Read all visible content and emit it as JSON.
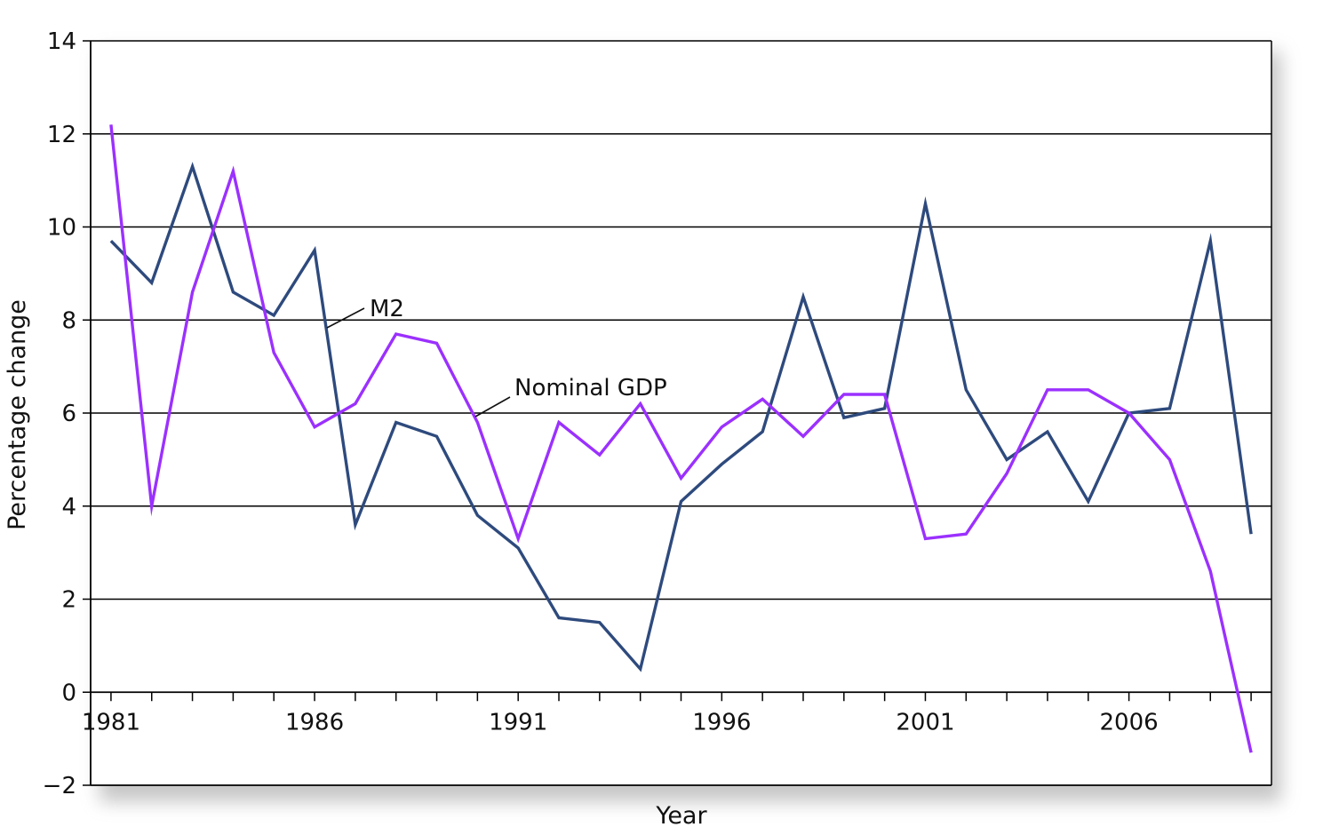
{
  "chart_data": {
    "type": "line",
    "title": "",
    "xlabel": "Year",
    "ylabel": "Percentage change",
    "x": [
      1981,
      1982,
      1983,
      1984,
      1985,
      1986,
      1987,
      1988,
      1989,
      1990,
      1991,
      1992,
      1993,
      1994,
      1995,
      1996,
      1997,
      1998,
      1999,
      2000,
      2001,
      2002,
      2003,
      2004,
      2005,
      2006,
      2007,
      2008,
      2009
    ],
    "xlim": [
      1980.5,
      2009.5
    ],
    "ylim": [
      -2,
      14
    ],
    "x_tick_labels": [
      {
        "x": 1981,
        "label": "1981"
      },
      {
        "x": 1986,
        "label": "1986"
      },
      {
        "x": 1991,
        "label": "1991"
      },
      {
        "x": 1996,
        "label": "1996"
      },
      {
        "x": 2001,
        "label": "2001"
      },
      {
        "x": 2006,
        "label": "2006"
      }
    ],
    "y_ticks": [
      {
        "value": 14,
        "label": "14"
      },
      {
        "value": 12,
        "label": "12"
      },
      {
        "value": 10,
        "label": "10"
      },
      {
        "value": 8,
        "label": "8"
      },
      {
        "value": 6,
        "label": "6"
      },
      {
        "value": 4,
        "label": "4"
      },
      {
        "value": 2,
        "label": "2"
      },
      {
        "value": 0,
        "label": "0"
      },
      {
        "value": -2,
        "label": "−2"
      }
    ],
    "grid": true,
    "series": [
      {
        "name": "M2",
        "color": "#2e4a7d",
        "values": [
          9.7,
          8.8,
          11.3,
          8.6,
          8.1,
          9.5,
          3.6,
          5.8,
          5.5,
          3.8,
          3.1,
          1.6,
          1.5,
          0.5,
          4.1,
          4.9,
          5.6,
          8.5,
          5.9,
          6.1,
          10.5,
          6.5,
          5.0,
          5.6,
          4.1,
          6.0,
          6.1,
          9.7,
          3.4
        ]
      },
      {
        "name": "Nominal GDP",
        "color": "#9b30ff",
        "values": [
          12.2,
          4.0,
          8.6,
          11.2,
          7.3,
          5.7,
          6.2,
          7.7,
          7.5,
          5.8,
          3.3,
          5.8,
          5.1,
          6.2,
          4.6,
          5.7,
          6.3,
          5.5,
          6.4,
          6.4,
          3.3,
          3.4,
          4.7,
          6.5,
          6.5,
          6.0,
          5.0,
          2.6,
          -1.3
        ]
      }
    ],
    "annotations": [
      {
        "label": "M2",
        "series": "M2"
      },
      {
        "label": "Nominal GDP",
        "series": "Nominal GDP"
      }
    ]
  }
}
